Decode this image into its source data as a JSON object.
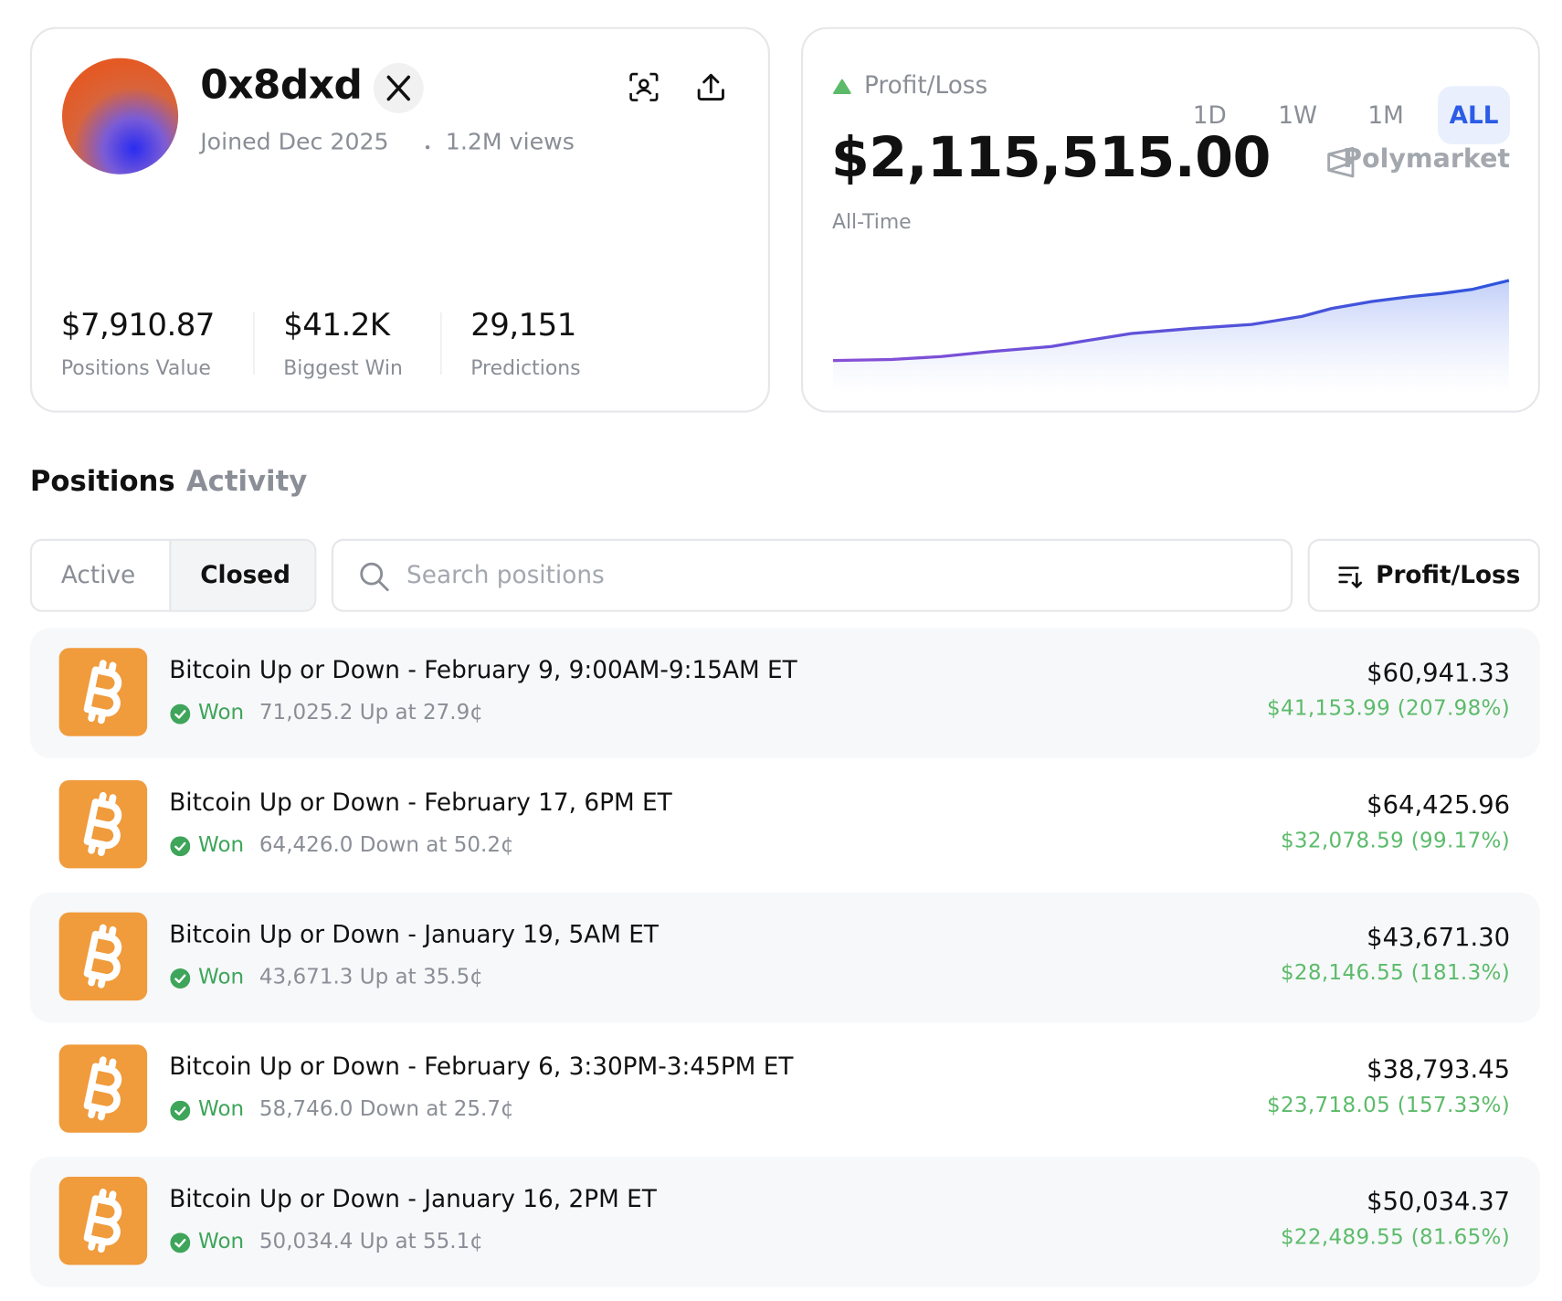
{
  "profile": {
    "name": "0x8dxd",
    "joined": "Joined Dec 2025",
    "views": "1.2M views"
  },
  "stats": [
    {
      "value": "$7,910.87",
      "label": "Positions Value"
    },
    {
      "value": "$41.2K",
      "label": "Biggest Win"
    },
    {
      "value": "29,151",
      "label": "Predictions"
    }
  ],
  "pnl": {
    "label": "Profit/Loss",
    "periods": [
      "1D",
      "1W",
      "1M",
      "ALL"
    ],
    "selected_period": "ALL",
    "amount": "$2,115,515.00",
    "brand": "Polymarket",
    "range_label": "All-Time"
  },
  "tabs": [
    "Positions",
    "Activity"
  ],
  "filters": [
    "Active",
    "Closed"
  ],
  "selected_filter": "Closed",
  "search_placeholder": "Search positions",
  "sort_label": "Profit/Loss",
  "positions": [
    {
      "title": "Bitcoin Up or Down - February 9, 9:00AM-9:15AM ET",
      "status": "Won",
      "detail": "71,025.2 Up at 27.9¢",
      "value": "$60,941.33",
      "pnl": "$41,153.99 (207.98%)"
    },
    {
      "title": "Bitcoin Up or Down - February 17, 6PM ET",
      "status": "Won",
      "detail": "64,426.0 Down at 50.2¢",
      "value": "$64,425.96",
      "pnl": "$32,078.59 (99.17%)"
    },
    {
      "title": "Bitcoin Up or Down - January 19, 5AM ET",
      "status": "Won",
      "detail": "43,671.3 Up at 35.5¢",
      "value": "$43,671.30",
      "pnl": "$28,146.55 (181.3%)"
    },
    {
      "title": "Bitcoin Up or Down - February 6, 3:30PM-3:45PM ET",
      "status": "Won",
      "detail": "58,746.0 Down at 25.7¢",
      "value": "$38,793.45",
      "pnl": "$23,718.05 (157.33%)"
    },
    {
      "title": "Bitcoin Up or Down - January 16, 2PM ET",
      "status": "Won",
      "detail": "50,034.4 Up at 55.1¢",
      "value": "$50,034.37",
      "pnl": "$22,489.55 (81.65%)"
    }
  ]
}
